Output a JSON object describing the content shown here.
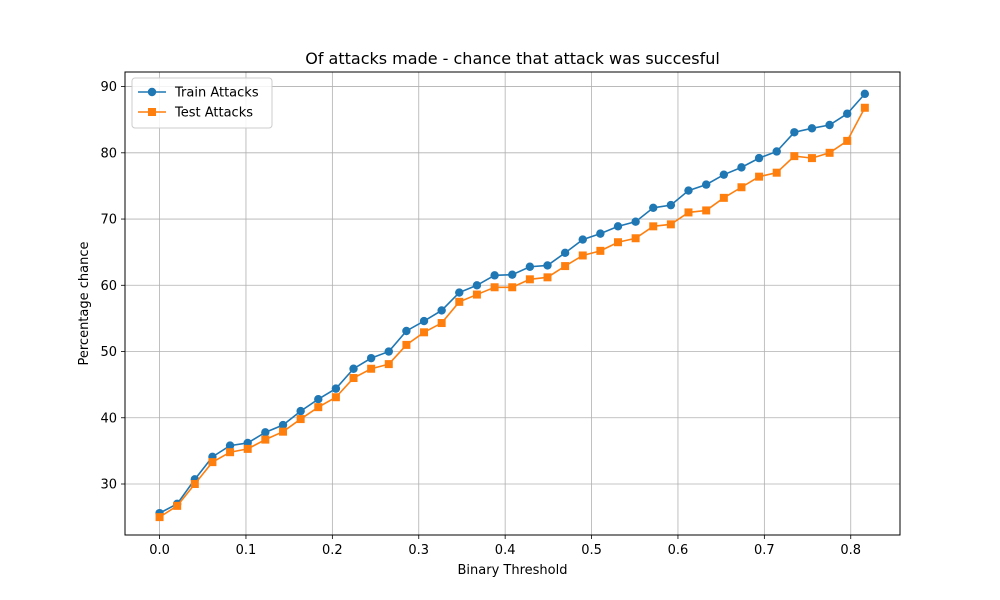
{
  "chart_data": {
    "type": "line",
    "title": "Of attacks made - chance that attack was succesful",
    "xlabel": "Binary Threshold",
    "ylabel": "Percentage chance",
    "xlim": [
      -0.04,
      0.857
    ],
    "ylim": [
      22.3,
      92.2
    ],
    "xticks": [
      0.0,
      0.1,
      0.2,
      0.3,
      0.4,
      0.5,
      0.6,
      0.7,
      0.8
    ],
    "xtick_labels": [
      "0.0",
      "0.1",
      "0.2",
      "0.3",
      "0.4",
      "0.5",
      "0.6",
      "0.7",
      "0.8"
    ],
    "yticks": [
      30,
      40,
      50,
      60,
      70,
      80,
      90
    ],
    "ytick_labels": [
      "30",
      "40",
      "50",
      "60",
      "70",
      "80",
      "90"
    ],
    "grid": true,
    "legend_position": "upper-left",
    "x": [
      0.0,
      0.0204,
      0.0408,
      0.0612,
      0.0816,
      0.102,
      0.1224,
      0.1429,
      0.1633,
      0.1837,
      0.2041,
      0.2245,
      0.2449,
      0.2653,
      0.2857,
      0.3061,
      0.3265,
      0.3469,
      0.3673,
      0.3878,
      0.4082,
      0.4286,
      0.449,
      0.4694,
      0.4898,
      0.5102,
      0.5306,
      0.551,
      0.5714,
      0.5918,
      0.6122,
      0.6327,
      0.6531,
      0.6735,
      0.6939,
      0.7143,
      0.7347,
      0.7551,
      0.7755,
      0.7959,
      0.8163
    ],
    "series": [
      {
        "name": "Train Attacks",
        "color": "#1f77b4",
        "marker": "circle",
        "values": [
          25.6,
          27.0,
          30.7,
          34.1,
          35.8,
          36.2,
          37.8,
          38.9,
          41.0,
          42.8,
          44.4,
          47.4,
          49.0,
          50.0,
          53.1,
          54.6,
          56.2,
          58.9,
          60.0,
          61.5,
          61.6,
          62.8,
          63.0,
          64.9,
          66.9,
          67.8,
          68.9,
          69.6,
          71.7,
          72.1,
          74.3,
          75.2,
          76.7,
          77.8,
          79.2,
          80.2,
          83.1,
          83.7,
          84.2,
          85.9,
          88.9
        ]
      },
      {
        "name": "Test Attacks",
        "color": "#ff7f0e",
        "marker": "square",
        "values": [
          25.0,
          26.7,
          30.0,
          33.3,
          34.8,
          35.3,
          36.7,
          37.9,
          39.8,
          41.6,
          43.1,
          46.0,
          47.4,
          48.1,
          51.0,
          52.9,
          54.3,
          57.5,
          58.6,
          59.7,
          59.7,
          60.9,
          61.2,
          62.9,
          64.5,
          65.2,
          66.5,
          67.1,
          68.9,
          69.2,
          71.0,
          71.3,
          73.2,
          74.8,
          76.4,
          77.0,
          79.5,
          79.2,
          80.0,
          81.8,
          86.8
        ]
      }
    ]
  }
}
